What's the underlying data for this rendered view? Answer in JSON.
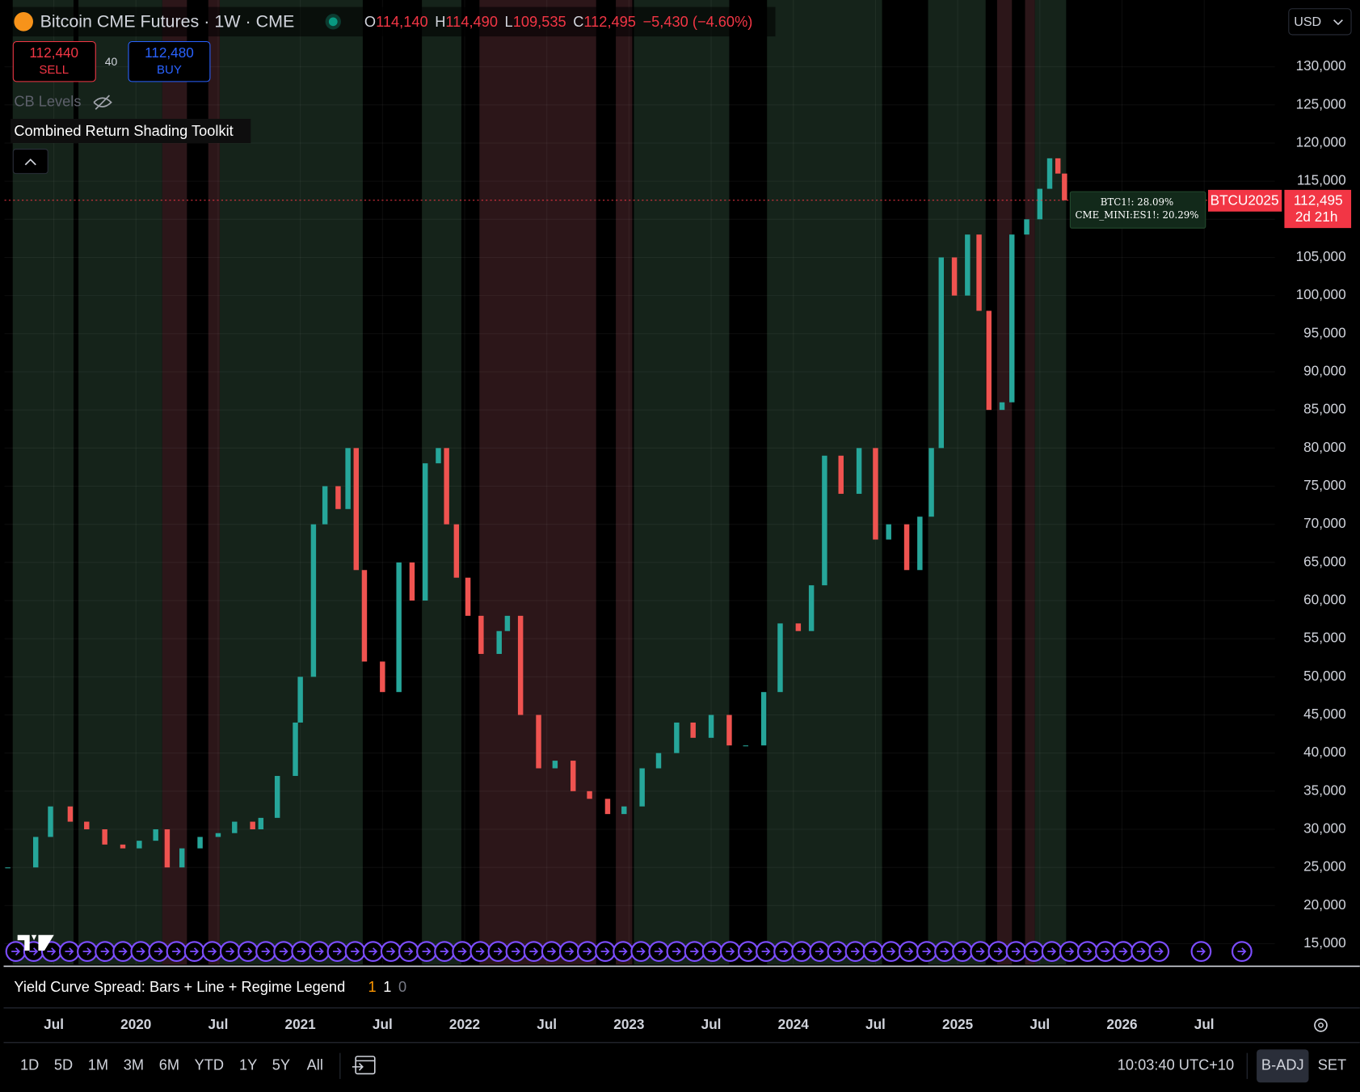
{
  "header": {
    "symbol_title": "Bitcoin CME Futures · 1W · CME",
    "ohlc": [
      {
        "label": "O",
        "value": "114,140"
      },
      {
        "label": "H",
        "value": "114,490"
      },
      {
        "label": "L",
        "value": "109,535"
      },
      {
        "label": "C",
        "value": "112,495"
      }
    ],
    "change": "−5,430 (−4.60%)",
    "currency": "USD"
  },
  "trade": {
    "sell_price": "112,440",
    "sell_label": "SELL",
    "spread": "40",
    "buy_price": "112,480",
    "buy_label": "BUY"
  },
  "indicators": {
    "cb_levels": "CB Levels",
    "toolkit": "Combined Return Shading Toolkit",
    "tooltip": [
      "BTC1!: 28.09%",
      "CME_MINI:ES1!: 20.29%"
    ],
    "yield_title": "Yield Curve Spread: Bars + Line + Regime Legend",
    "yield_values": [
      "1",
      "1",
      "0"
    ]
  },
  "price_tag": {
    "symbol": "BTCU2025",
    "countdown": "2d 21h"
  },
  "chart_data": {
    "type": "candlestick",
    "x": [
      2019.22,
      2019.39,
      2019.48,
      2019.6,
      2019.7,
      2019.81,
      2019.92,
      2020.02,
      2020.12,
      2020.19,
      2020.28,
      2020.39,
      2020.5,
      2020.6,
      2020.71,
      2020.76,
      2020.86,
      2020.97,
      2021.0,
      2021.08,
      2021.15,
      2021.23,
      2021.29,
      2021.34,
      2021.39,
      2021.5,
      2021.6,
      2021.68,
      2021.76,
      2021.84,
      2021.89,
      2021.95,
      2022.02,
      2022.1,
      2022.21,
      2022.26,
      2022.34,
      2022.45,
      2022.55,
      2022.66,
      2022.76,
      2022.87,
      2022.97,
      2023.08,
      2023.18,
      2023.29,
      2023.39,
      2023.5,
      2023.61,
      2023.71,
      2023.82,
      2023.92,
      2024.03,
      2024.11,
      2024.19,
      2024.29,
      2024.4,
      2024.5,
      2024.58,
      2024.69,
      2024.77,
      2024.84,
      2024.9,
      2024.98,
      2025.06,
      2025.13,
      2025.19,
      2025.27,
      2025.33,
      2025.42,
      2025.5,
      2025.56,
      2025.61,
      2025.65
    ],
    "values": [
      25000,
      29000,
      33000,
      31000,
      30000,
      28000,
      27500,
      28500,
      30000,
      25000,
      27500,
      29000,
      29500,
      31000,
      30000,
      31500,
      37000,
      44000,
      50000,
      70000,
      75000,
      72000,
      80000,
      64000,
      52000,
      48000,
      65000,
      60000,
      78000,
      80000,
      70000,
      63000,
      58000,
      53000,
      56000,
      58000,
      45000,
      38000,
      39000,
      35000,
      34000,
      32000,
      33000,
      38000,
      40000,
      44000,
      42000,
      45000,
      41000,
      41000,
      48000,
      57000,
      56000,
      62000,
      79000,
      74000,
      80000,
      68000,
      70000,
      64000,
      71000,
      80000,
      105000,
      100000,
      108000,
      98000,
      85000,
      86000,
      108000,
      110000,
      114000,
      118000,
      116000,
      112495
    ],
    "last_price": {
      "value": 112495,
      "label": "112,495"
    },
    "regimes": [
      {
        "start": 2019.25,
        "end": 2019.62,
        "color": "#15231a"
      },
      {
        "start": 2019.65,
        "end": 2020.16,
        "color": "#15231a"
      },
      {
        "start": 2020.16,
        "end": 2020.31,
        "color": "#2c1619"
      },
      {
        "start": 2020.44,
        "end": 2020.51,
        "color": "#2c1619"
      },
      {
        "start": 2020.51,
        "end": 2021.38,
        "color": "#15231a"
      },
      {
        "start": 2021.74,
        "end": 2021.98,
        "color": "#15231a"
      },
      {
        "start": 2022.09,
        "end": 2022.8,
        "color": "#2c1619"
      },
      {
        "start": 2022.92,
        "end": 2023.02,
        "color": "#2c1619"
      },
      {
        "start": 2023.03,
        "end": 2023.61,
        "color": "#15231a"
      },
      {
        "start": 2023.84,
        "end": 2024.54,
        "color": "#15231a"
      },
      {
        "start": 2024.82,
        "end": 2025.17,
        "color": "#15231a"
      },
      {
        "start": 2025.24,
        "end": 2025.33,
        "color": "#2c1619"
      },
      {
        "start": 2025.41,
        "end": 2025.47,
        "color": "#2c1619"
      },
      {
        "start": 2025.47,
        "end": 2025.66,
        "color": "#15231a"
      }
    ],
    "xlim": [
      2019.2,
      2026.93
    ],
    "ylim": [
      12270,
      138760
    ],
    "xticks": [
      {
        "value": 2019.5,
        "label": "Jul"
      },
      2020,
      {
        "value": 2020.5,
        "label": "Jul"
      },
      2021,
      {
        "value": 2021.5,
        "label": "Jul"
      },
      2022,
      {
        "value": 2022.5,
        "label": "Jul"
      },
      2023,
      {
        "value": 2023.5,
        "label": "Jul"
      },
      2024,
      {
        "value": 2024.5,
        "label": "Jul"
      },
      2025,
      {
        "value": 2025.5,
        "label": "Jul"
      },
      2026,
      {
        "value": 2026.5,
        "label": "Jul"
      }
    ],
    "yticks": [
      {
        "value": 15000,
        "label": "15,000"
      },
      {
        "value": 20000,
        "label": "20,000"
      },
      {
        "value": 25000,
        "label": "25,000"
      },
      {
        "value": 30000,
        "label": "30,000"
      },
      {
        "value": 35000,
        "label": "35,000"
      },
      {
        "value": 40000,
        "label": "40,000"
      },
      {
        "value": 45000,
        "label": "45,000"
      },
      {
        "value": 50000,
        "label": "50,000"
      },
      {
        "value": 55000,
        "label": "55,000"
      },
      {
        "value": 60000,
        "label": "60,000"
      },
      {
        "value": 65000,
        "label": "65,000"
      },
      {
        "value": 70000,
        "label": "70,000"
      },
      {
        "value": 75000,
        "label": "75,000"
      },
      {
        "value": 80000,
        "label": "80,000"
      },
      {
        "value": 85000,
        "label": "85,000"
      },
      {
        "value": 90000,
        "label": "90,000"
      },
      {
        "value": 95000,
        "label": "95,000"
      },
      {
        "value": 100000,
        "label": "100,000"
      },
      {
        "value": 105000,
        "label": "105,000"
      },
      {
        "value": 110000,
        "label": "110,000"
      },
      {
        "value": 115000,
        "label": "115,000"
      },
      {
        "value": 120000,
        "label": "120,000"
      },
      {
        "value": 125000,
        "label": "125,000"
      },
      {
        "value": 130000,
        "label": "130,000"
      }
    ],
    "up_color": "#26a69a",
    "down_color": "#ef5350",
    "grid": true
  },
  "toolbar": {
    "ranges": [
      "1D",
      "5D",
      "1M",
      "3M",
      "6M",
      "YTD",
      "1Y",
      "5Y",
      "All"
    ],
    "clock": "10:03:40 UTC+10",
    "buttons": [
      "B-ADJ",
      "SET"
    ]
  }
}
